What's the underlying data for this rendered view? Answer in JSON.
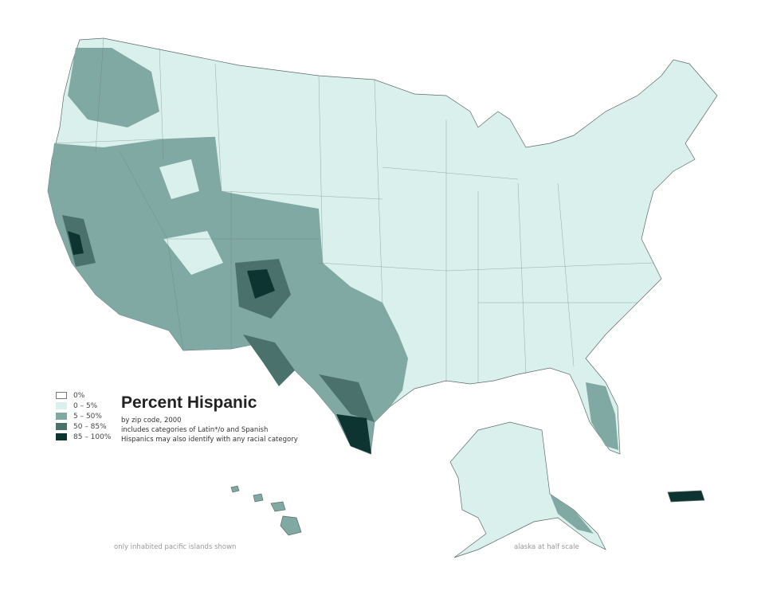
{
  "title": "Percent Hispanic",
  "subtitle_lines": [
    "by zip code, 2000",
    "includes categories of Latin*/o and Spanish",
    "Hispanics may also identify with any racial category"
  ],
  "legend": [
    {
      "label": "0%",
      "color": "#ffffff"
    },
    {
      "label": "0 – 5%",
      "color": "#d9f0ec"
    },
    {
      "label": "5 – 50%",
      "color": "#80a9a4"
    },
    {
      "label": "50 – 85%",
      "color": "#4b716d"
    },
    {
      "label": "85 – 100%",
      "color": "#0e3431"
    }
  ],
  "notes": {
    "pacific": "only inhabited pacific islands shown",
    "alaska": "alaska at half scale"
  }
}
